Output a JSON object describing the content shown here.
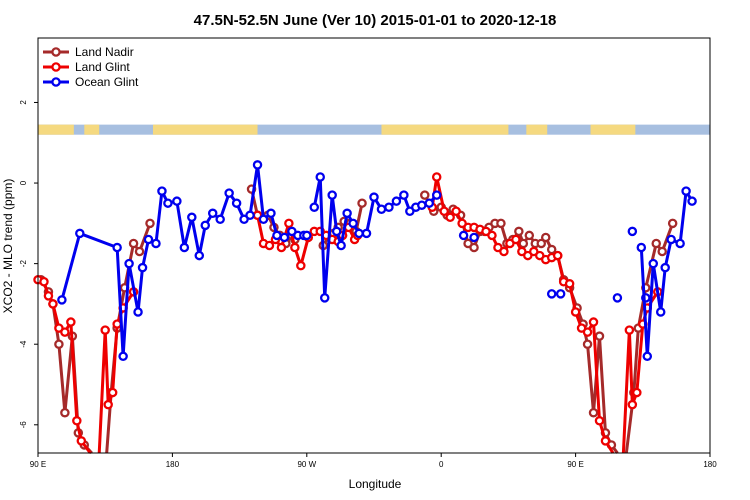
{
  "chart_data": {
    "type": "line",
    "title": "47.5N-52.5N June (Ver 10)   2015-01-01 to 2020-12-18",
    "xlabel": "Longitude",
    "ylabel": "XCO2 - MLO trend (ppm)",
    "x_ticks": [
      {
        "value": 90,
        "label": "90 E"
      },
      {
        "value": 180,
        "label": "180"
      },
      {
        "value": 270,
        "label": "90 W"
      },
      {
        "value": 360,
        "label": "0"
      },
      {
        "value": 450,
        "label": "90 E"
      },
      {
        "value": 540,
        "label": "180"
      }
    ],
    "y_ticks": [
      {
        "value": 2,
        "label": "2"
      },
      {
        "value": 0,
        "label": "0"
      },
      {
        "value": -2,
        "label": "-2"
      },
      {
        "value": -4,
        "label": "-4"
      },
      {
        "value": -6,
        "label": "-6"
      }
    ],
    "xlim": [
      90,
      540
    ],
    "ylim": [
      -6.7,
      3.6
    ],
    "grid": false,
    "legend_position": "top-left",
    "land_ocean_strip": {
      "ocean_color": "#a7bfe0",
      "land_color": "#f5d980",
      "y_range": [
        1.2,
        1.45
      ]
    },
    "series": [
      {
        "name": "Land Nadir",
        "color": "#a52a2a",
        "segments": [
          [
            [
              92,
              -2.4
            ],
            [
              97,
              -2.7
            ],
            [
              100,
              -3.0
            ],
            [
              104,
              -4.0
            ],
            [
              108,
              -5.7
            ],
            [
              113,
              -3.8
            ],
            [
              117,
              -6.2
            ],
            [
              121,
              -6.5
            ],
            [
              126,
              -6.7
            ]
          ],
          [
            [
              136,
              -6.7
            ],
            [
              139,
              -5.2
            ],
            [
              143,
              -3.6
            ],
            [
              148,
              -2.6
            ],
            [
              154,
              -1.5
            ],
            [
              158,
              -1.7
            ],
            [
              165,
              -1.0
            ]
          ],
          [
            [
              233,
              -0.15
            ],
            [
              237,
              -0.8
            ],
            [
              244,
              -0.8
            ],
            [
              248,
              -1.1
            ],
            [
              252,
              -1.3
            ],
            [
              256,
              -1.5
            ],
            [
              260,
              -1.3
            ],
            [
              262,
              -1.4
            ]
          ],
          [
            [
              281,
              -1.55
            ],
            [
              285,
              -1.3
            ],
            [
              288,
              -1.25
            ],
            [
              291,
              -1.1
            ],
            [
              295,
              -0.95
            ],
            [
              299,
              -1.0
            ],
            [
              303,
              -1.2
            ],
            [
              307,
              -0.5
            ]
          ],
          [
            [
              349,
              -0.3
            ],
            [
              355,
              -0.7
            ],
            [
              360,
              -0.6
            ],
            [
              364,
              -0.8
            ],
            [
              368,
              -0.65
            ],
            [
              373,
              -0.8
            ],
            [
              378,
              -1.5
            ],
            [
              382,
              -1.6
            ],
            [
              386,
              -1.2
            ],
            [
              389,
              -1.2
            ],
            [
              392,
              -1.1
            ],
            [
              396,
              -1.0
            ],
            [
              400,
              -1.0
            ],
            [
              404,
              -1.5
            ],
            [
              408,
              -1.4
            ],
            [
              412,
              -1.2
            ],
            [
              415,
              -1.5
            ],
            [
              419,
              -1.3
            ],
            [
              423,
              -1.5
            ],
            [
              427,
              -1.5
            ],
            [
              430,
              -1.35
            ],
            [
              434,
              -1.65
            ],
            [
              438,
              -1.8
            ],
            [
              442,
              -2.4
            ],
            [
              446,
              -2.6
            ],
            [
              451,
              -3.1
            ],
            [
              455,
              -3.5
            ],
            [
              458,
              -4.0
            ],
            [
              462,
              -5.7
            ],
            [
              466,
              -3.8
            ],
            [
              470,
              -6.2
            ],
            [
              474,
              -6.5
            ],
            [
              478,
              -6.7
            ]
          ],
          [
            [
              484,
              -6.7
            ],
            [
              489,
              -5.2
            ],
            [
              492,
              -3.6
            ],
            [
              497,
              -2.6
            ],
            [
              504,
              -1.5
            ],
            [
              508,
              -1.7
            ],
            [
              515,
              -1.0
            ]
          ]
        ]
      },
      {
        "name": "Land Glint",
        "color": "#ee0000",
        "segments": [
          [
            [
              90,
              -2.4
            ],
            [
              94,
              -2.45
            ],
            [
              97,
              -2.8
            ],
            [
              100,
              -3.0
            ],
            [
              104,
              -3.6
            ],
            [
              108,
              -3.7
            ],
            [
              112,
              -3.45
            ],
            [
              116,
              -5.9
            ],
            [
              119,
              -6.4
            ],
            [
              125,
              -6.7
            ]
          ],
          [
            [
              131,
              -6.7
            ],
            [
              135,
              -3.65
            ],
            [
              137,
              -5.5
            ],
            [
              140,
              -5.2
            ],
            [
              143,
              -3.5
            ],
            [
              147,
              -3.1
            ],
            [
              154,
              -2.7
            ]
          ],
          [
            [
              237,
              -0.8
            ],
            [
              241,
              -1.5
            ],
            [
              245,
              -1.55
            ],
            [
              249,
              -1.4
            ],
            [
              253,
              -1.6
            ],
            [
              258,
              -1.0
            ],
            [
              262,
              -1.6
            ],
            [
              266,
              -2.05
            ],
            [
              271,
              -1.35
            ],
            [
              275,
              -1.2
            ],
            [
              279,
              -1.2
            ],
            [
              283,
              -1.3
            ],
            [
              287,
              -1.4
            ],
            [
              291,
              -1.45
            ],
            [
              294,
              -1.3
            ],
            [
              298,
              -1.1
            ],
            [
              302,
              -1.4
            ],
            [
              304,
              -1.3
            ]
          ],
          [
            [
              354,
              -0.6
            ],
            [
              357,
              0.15
            ],
            [
              362,
              -0.7
            ],
            [
              366,
              -0.85
            ],
            [
              370,
              -0.7
            ],
            [
              374,
              -1.0
            ],
            [
              378,
              -1.1
            ],
            [
              382,
              -1.1
            ],
            [
              386,
              -1.15
            ],
            [
              390,
              -1.2
            ],
            [
              394,
              -1.3
            ],
            [
              398,
              -1.6
            ],
            [
              402,
              -1.7
            ],
            [
              406,
              -1.5
            ],
            [
              410,
              -1.4
            ],
            [
              414,
              -1.7
            ],
            [
              418,
              -1.8
            ],
            [
              422,
              -1.7
            ],
            [
              426,
              -1.8
            ],
            [
              430,
              -1.9
            ],
            [
              434,
              -1.85
            ],
            [
              438,
              -1.8
            ],
            [
              442,
              -2.45
            ],
            [
              446,
              -2.5
            ],
            [
              450,
              -3.2
            ],
            [
              454,
              -3.6
            ],
            [
              458,
              -3.7
            ],
            [
              462,
              -3.45
            ],
            [
              466,
              -5.9
            ],
            [
              470,
              -6.4
            ],
            [
              475,
              -6.7
            ]
          ],
          [
            [
              482,
              -6.7
            ],
            [
              486,
              -3.65
            ],
            [
              488,
              -5.5
            ],
            [
              491,
              -5.2
            ],
            [
              495,
              -3.5
            ],
            [
              498,
              -3.1
            ],
            [
              505,
              -2.7
            ]
          ]
        ]
      },
      {
        "name": "Ocean Glint",
        "color": "#0000ee",
        "segments": [
          [
            [
              106,
              -2.9
            ],
            [
              118,
              -1.25
            ],
            [
              143,
              -1.6
            ],
            [
              147,
              -4.3
            ],
            [
              151,
              -2.0
            ],
            [
              157,
              -3.2
            ],
            [
              160,
              -2.1
            ],
            [
              164,
              -1.4
            ],
            [
              169,
              -1.5
            ],
            [
              173,
              -0.2
            ],
            [
              177,
              -0.5
            ],
            [
              183,
              -0.45
            ],
            [
              188,
              -1.6
            ],
            [
              193,
              -0.85
            ],
            [
              198,
              -1.8
            ],
            [
              202,
              -1.05
            ],
            [
              207,
              -0.75
            ],
            [
              212,
              -0.9
            ],
            [
              218,
              -0.25
            ],
            [
              223,
              -0.5
            ],
            [
              228,
              -0.9
            ],
            [
              232,
              -0.8
            ],
            [
              237,
              0.45
            ],
            [
              241,
              -0.9
            ],
            [
              246,
              -0.75
            ],
            [
              250,
              -1.3
            ],
            [
              255,
              -1.35
            ],
            [
              260,
              -1.2
            ],
            [
              264,
              -1.3
            ],
            [
              268,
              -1.3
            ]
          ],
          [
            [
              270,
              -1.3
            ]
          ],
          [
            [
              275,
              -0.6
            ],
            [
              279,
              0.15
            ],
            [
              282,
              -2.85
            ],
            [
              287,
              -0.3
            ],
            [
              290,
              -1.2
            ],
            [
              293,
              -1.55
            ],
            [
              297,
              -0.75
            ],
            [
              301,
              -1.0
            ],
            [
              305,
              -1.25
            ],
            [
              310,
              -1.25
            ],
            [
              315,
              -0.35
            ],
            [
              320,
              -0.65
            ],
            [
              325,
              -0.6
            ],
            [
              330,
              -0.45
            ],
            [
              335,
              -0.3
            ],
            [
              339,
              -0.7
            ],
            [
              343,
              -0.6
            ],
            [
              347,
              -0.55
            ],
            [
              352,
              -0.5
            ],
            [
              357,
              -0.3
            ]
          ],
          [
            [
              375,
              -1.3
            ]
          ],
          [
            [
              382,
              -1.35
            ]
          ],
          [
            [
              434,
              -2.75
            ]
          ],
          [
            [
              440,
              -2.75
            ]
          ],
          [
            [
              478,
              -2.85
            ]
          ],
          [
            [
              497,
              -2.85
            ]
          ],
          [
            [
              488,
              -1.2
            ]
          ],
          [
            [
              494,
              -1.6
            ],
            [
              498,
              -4.3
            ],
            [
              502,
              -2.0
            ],
            [
              507,
              -3.2
            ],
            [
              510,
              -2.1
            ],
            [
              514,
              -1.4
            ],
            [
              520,
              -1.5
            ],
            [
              524,
              -0.2
            ],
            [
              528,
              -0.45
            ]
          ]
        ]
      }
    ]
  }
}
